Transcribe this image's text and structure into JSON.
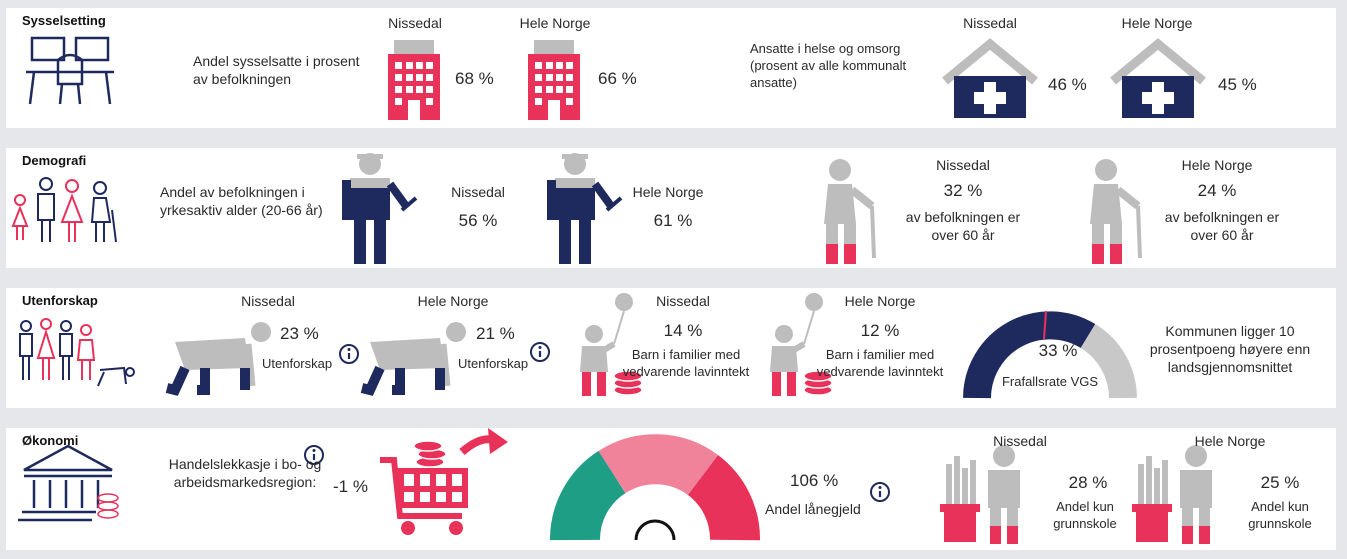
{
  "sysselsetting": {
    "title": "Sysselsetting",
    "employment": {
      "label": "Andel sysselsatte i prosent av befolkningen",
      "nissedal": {
        "name": "Nissedal",
        "value": "68 %"
      },
      "norge": {
        "name": "Hele Norge",
        "value": "66 %"
      }
    },
    "health": {
      "label": "Ansatte i helse og omsorg (prosent av alle kommunalt ansatte)",
      "nissedal": {
        "name": "Nissedal",
        "value": "46 %"
      },
      "norge": {
        "name": "Hele Norge",
        "value": "45 %"
      }
    }
  },
  "demografi": {
    "title": "Demografi",
    "working_age": {
      "label": "Andel av befolkningen i yrkesaktiv alder (20-66 år)",
      "nissedal": {
        "name": "Nissedal",
        "value": "56 %"
      },
      "norge": {
        "name": "Hele Norge",
        "value": "61 %"
      }
    },
    "over60": {
      "nissedal": {
        "name": "Nissedal",
        "value": "32 %",
        "caption": "av befolkningen er over 60 år"
      },
      "norge": {
        "name": "Hele Norge",
        "value": "24 %",
        "caption": "av befolkningen er over 60 år"
      }
    }
  },
  "utenforskap": {
    "title": "Utenforskap",
    "outside": {
      "nissedal": {
        "name": "Nissedal",
        "value": "23 %",
        "caption": "Utenforskap"
      },
      "norge": {
        "name": "Hele Norge",
        "value": "21 %",
        "caption": "Utenforskap"
      }
    },
    "low_income": {
      "nissedal": {
        "name": "Nissedal",
        "value": "14 %",
        "caption": "Barn i familier med vedvarende lavinntekt"
      },
      "norge": {
        "name": "Hele Norge",
        "value": "12 %",
        "caption": "Barn i familier med vedvarende lavinntekt"
      }
    },
    "dropout": {
      "value": "33 %",
      "label": "Frafallsrate VGS",
      "note": "Kommunen ligger 10 prosentpoeng høyere enn landsgjennomsnittet"
    }
  },
  "okonomi": {
    "title": "Økonomi",
    "trade_leak": {
      "label": "Handelslekkasje i bo- og arbeidsmarkedsregion:",
      "value": "-1 %"
    },
    "debt": {
      "value": "106 %",
      "label": "Andel lånegjeld"
    },
    "primary_school": {
      "nissedal": {
        "name": "Nissedal",
        "value": "28 %",
        "caption": "Andel kun grunnskole"
      },
      "norge": {
        "name": "Hele Norge",
        "value": "25 %",
        "caption": "Andel kun grunnskole"
      }
    }
  }
}
